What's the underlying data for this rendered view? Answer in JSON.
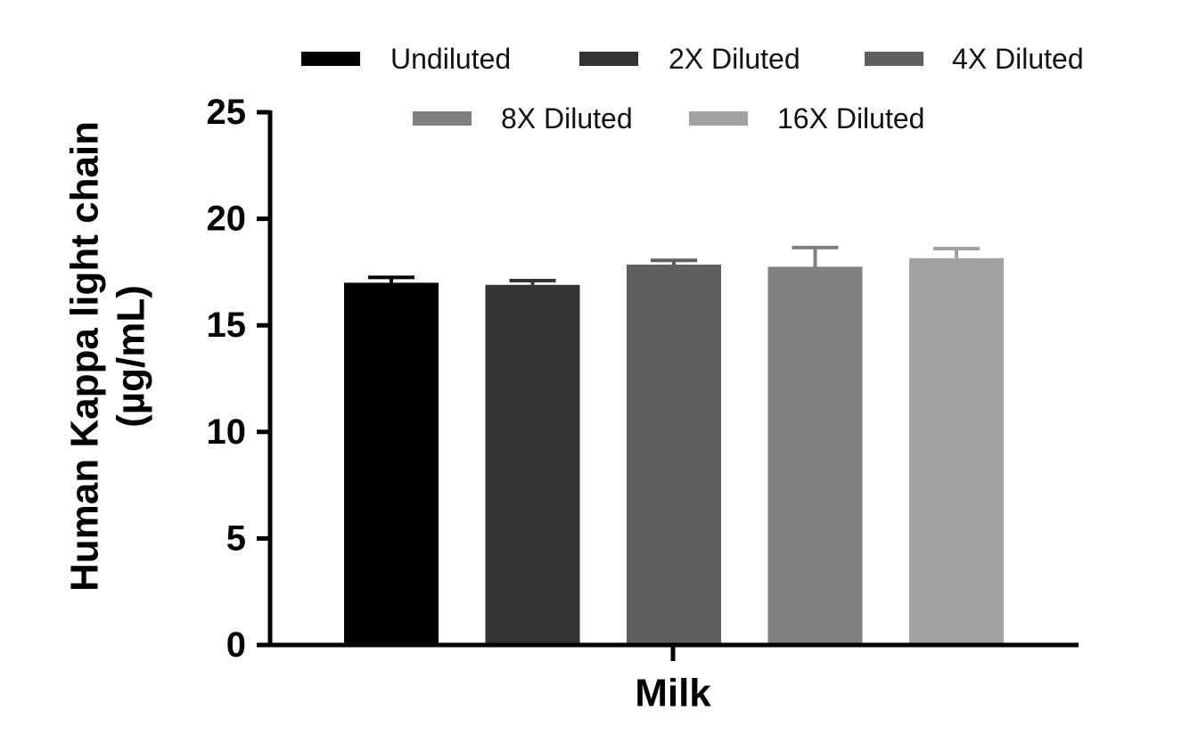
{
  "chart_data": {
    "type": "bar",
    "categories": [
      "Milk"
    ],
    "xlabel": "Milk",
    "ylabel_line1": "Human Kappa light chain",
    "ylabel_line2": "(µg/mL)",
    "ylim": [
      0,
      25
    ],
    "yticks": [
      0,
      5,
      10,
      15,
      20,
      25
    ],
    "grid": false,
    "legend_position": "top",
    "series": [
      {
        "name": "Undiluted",
        "value": 17.0,
        "error": 0.25,
        "color": "#000000"
      },
      {
        "name": "2X Diluted",
        "value": 16.9,
        "error": 0.2,
        "color": "#333333"
      },
      {
        "name": "4X Diluted",
        "value": 17.85,
        "error": 0.2,
        "color": "#5f5f5f"
      },
      {
        "name": "8X Diluted",
        "value": 17.75,
        "error": 0.9,
        "color": "#808080"
      },
      {
        "name": "16X Diluted",
        "value": 18.15,
        "error": 0.45,
        "color": "#a2a2a5"
      }
    ]
  }
}
